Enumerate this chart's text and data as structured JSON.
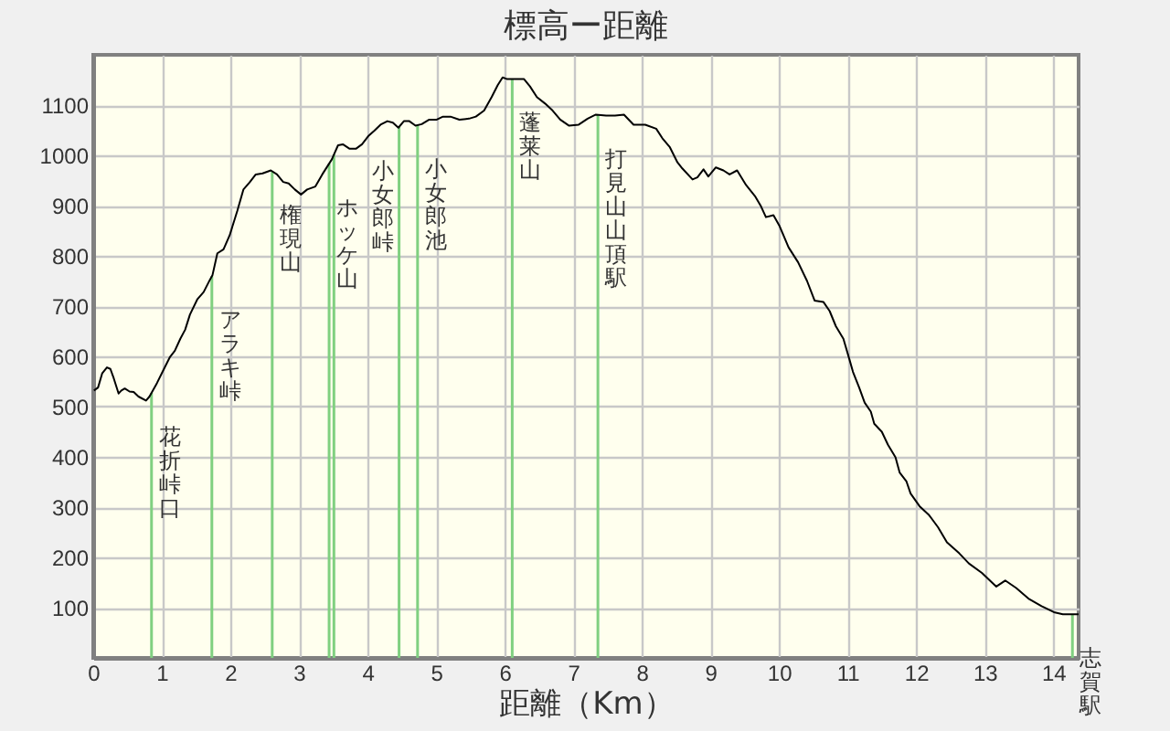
{
  "chart_data": {
    "type": "line",
    "title": "標高ー距離",
    "xlabel": "距離（Km）",
    "xlim": [
      0,
      14.37
    ],
    "ylim": [
      0,
      1200
    ],
    "xticks": [
      0,
      1,
      2,
      3,
      4,
      5,
      6,
      7,
      8,
      9,
      10,
      11,
      12,
      13,
      14
    ],
    "yticks": [
      100,
      200,
      300,
      400,
      500,
      600,
      700,
      800,
      900,
      1000,
      1100
    ],
    "grid": true,
    "series": [
      {
        "color": "#000000",
        "x": [
          0.01,
          0.07,
          0.13,
          0.2,
          0.25,
          0.3,
          0.37,
          0.41,
          0.46,
          0.53,
          0.59,
          0.66,
          0.77,
          0.82,
          0.93,
          1.01,
          1.12,
          1.19,
          1.27,
          1.34,
          1.41,
          1.52,
          1.61,
          1.7,
          1.74,
          1.81,
          1.9,
          1.99,
          2.1,
          2.19,
          2.28,
          2.37,
          2.47,
          2.59,
          2.68,
          2.77,
          2.85,
          2.94,
          3.03,
          3.12,
          3.24,
          3.34,
          3.48,
          3.57,
          3.64,
          3.74,
          3.83,
          3.92,
          4.01,
          4.1,
          4.19,
          4.29,
          4.37,
          4.45,
          4.53,
          4.61,
          4.7,
          4.79,
          4.9,
          5.01,
          5.1,
          5.21,
          5.34,
          5.48,
          5.58,
          5.7,
          5.81,
          5.9,
          5.97,
          6.03,
          6.14,
          6.28,
          6.37,
          6.47,
          6.59,
          6.7,
          6.81,
          6.94,
          7.08,
          7.21,
          7.33,
          7.48,
          7.61,
          7.74,
          7.88,
          8.05,
          8.21,
          8.3,
          8.41,
          8.52,
          8.59,
          8.74,
          8.81,
          8.9,
          8.97,
          9.08,
          9.19,
          9.28,
          9.39,
          9.52,
          9.65,
          9.74,
          9.81,
          9.92,
          10.01,
          10.14,
          10.28,
          10.41,
          10.52,
          10.65,
          10.74,
          10.83,
          10.94,
          11.03,
          11.08,
          11.17,
          11.25,
          11.34,
          11.39,
          11.5,
          11.59,
          11.7,
          11.76,
          11.86,
          11.92,
          12.05,
          12.19,
          12.32,
          12.45,
          12.63,
          12.77,
          12.96,
          13.17,
          13.3,
          13.46,
          13.65,
          13.83,
          14.01,
          14.14,
          14.37
        ],
        "values": [
          532,
          538,
          566,
          578,
          575,
          556,
          526,
          532,
          536,
          530,
          529,
          520,
          512,
          520,
          547,
          569,
          599,
          611,
          635,
          653,
          683,
          714,
          728,
          752,
          762,
          805,
          813,
          841,
          889,
          932,
          946,
          962,
          964,
          970,
          962,
          947,
          944,
          932,
          922,
          932,
          938,
          962,
          992,
          1020,
          1022,
          1013,
          1013,
          1022,
          1038,
          1049,
          1061,
          1068,
          1065,
          1055,
          1068,
          1068,
          1059,
          1062,
          1071,
          1071,
          1077,
          1077,
          1071,
          1073,
          1077,
          1089,
          1116,
          1140,
          1155,
          1152,
          1152,
          1152,
          1137,
          1116,
          1103,
          1089,
          1071,
          1059,
          1061,
          1073,
          1081,
          1079,
          1079,
          1081,
          1061,
          1061,
          1053,
          1034,
          1016,
          986,
          974,
          952,
          956,
          972,
          958,
          976,
          970,
          962,
          970,
          941,
          919,
          898,
          877,
          881,
          859,
          817,
          787,
          750,
          711,
          708,
          690,
          660,
          635,
          593,
          569,
          538,
          508,
          490,
          466,
          450,
          424,
          399,
          369,
          351,
          327,
          302,
          284,
          260,
          230,
          208,
          188,
          169,
          142,
          154,
          139,
          117,
          103,
          91,
          87,
          87
        ]
      }
    ],
    "ref_lines": [
      {
        "axis": "x",
        "value": 0.85,
        "label": "花折峠口",
        "color": "#80d080"
      },
      {
        "axis": "x",
        "value": 1.73,
        "label": "アラキ峠",
        "color": "#80d080"
      },
      {
        "axis": "x",
        "value": 2.61,
        "label": "権現山",
        "color": "#80d080"
      },
      {
        "axis": "x",
        "value": 3.44,
        "label": "ホッケ山",
        "color": "#80d080"
      },
      {
        "axis": "x",
        "value": 3.51,
        "color": "#80d080"
      },
      {
        "axis": "x",
        "value": 4.46,
        "label": "小女郎峠",
        "color": "#80d080"
      },
      {
        "axis": "x",
        "value": 4.73,
        "label": "小女郎池",
        "color": "#80d080"
      },
      {
        "axis": "x",
        "value": 6.11,
        "label": "蓬莱山",
        "color": "#80d080"
      },
      {
        "axis": "x",
        "value": 7.36,
        "label": "打見山山頂駅",
        "color": "#80d080"
      },
      {
        "axis": "x",
        "value": 14.28,
        "label": "志賀駅",
        "color": "#80d080"
      }
    ]
  }
}
